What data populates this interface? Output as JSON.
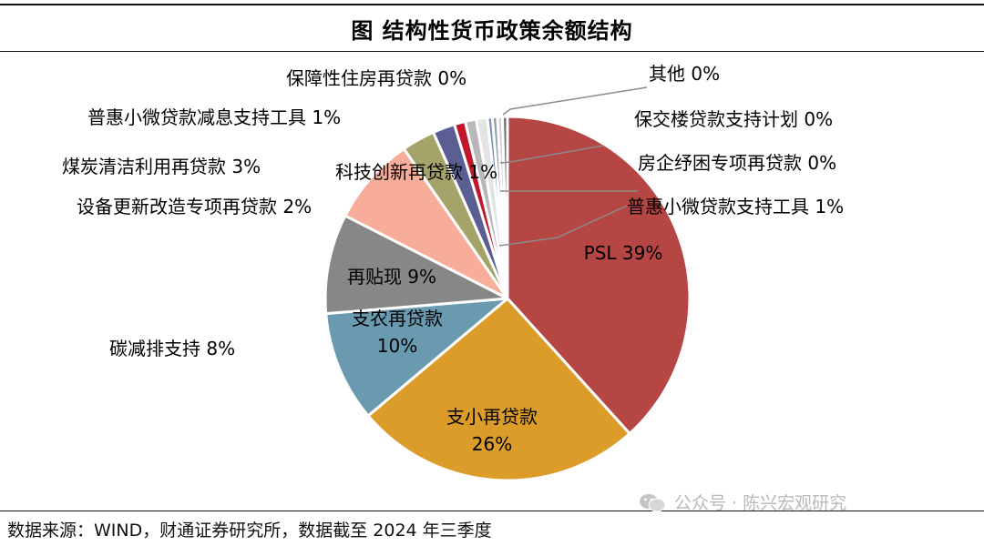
{
  "title": "图  结构性货币政策余额结构",
  "source": "数据来源：WIND，财通证券研究所，数据截至 2024 年三季度",
  "watermark": "公众号 · 陈兴宏观研究",
  "chart_data": {
    "type": "pie",
    "title": "图  结构性货币政策余额结构",
    "slices": [
      {
        "label": "PSL",
        "value": 39,
        "display": "PSL 39%",
        "color": "#B54644"
      },
      {
        "label": "支小再贷款",
        "value": 26,
        "display": "26%",
        "color": "#DC9C2A"
      },
      {
        "label": "支农再贷款",
        "value": 10,
        "display": "10%",
        "color": "#6A9AAF"
      },
      {
        "label": "再贴现",
        "value": 9,
        "display": "再贴现 9%",
        "color": "#878787"
      },
      {
        "label": "碳减排支持",
        "value": 8,
        "display": "碳减排支持 8%",
        "color": "#F7AD9A"
      },
      {
        "label": "煤炭清洁利用再贷款",
        "value": 3,
        "display": "煤炭清洁利用再贷款 3%",
        "color": "#A4A46A"
      },
      {
        "label": "设备更新改造专项再贷款",
        "value": 2,
        "display": "设备更新改造专项再贷款 2%",
        "color": "#5B5E92"
      },
      {
        "label": "科技创新再贷款",
        "value": 1,
        "display": "科技创新再贷款 1%",
        "color": "#C0172B"
      },
      {
        "label": "普惠小微贷款减息支持工具",
        "value": 1,
        "display": "普惠小微贷款减息支持工具 1%",
        "color": "#B8B8B8"
      },
      {
        "label": "普惠小微贷款支持工具",
        "value": 1,
        "display": "普惠小微贷款支持工具 1%",
        "color": "#E3E3E3"
      },
      {
        "label": "房企纾困专项再贷款",
        "value": 0,
        "display": "房企纾困专项再贷款 0%",
        "color": "#7C8FB8"
      },
      {
        "label": "保交楼贷款支持计划",
        "value": 0,
        "display": "保交楼贷款支持计划 0%",
        "color": "#9A9A9A"
      },
      {
        "label": "其他",
        "value": 0,
        "display": "其他 0%",
        "color": "#CFCFCF"
      },
      {
        "label": "保障性住房再贷款",
        "value": 0,
        "display": "保障性住房再贷款 0%",
        "color": "#6E6E6E"
      }
    ]
  }
}
